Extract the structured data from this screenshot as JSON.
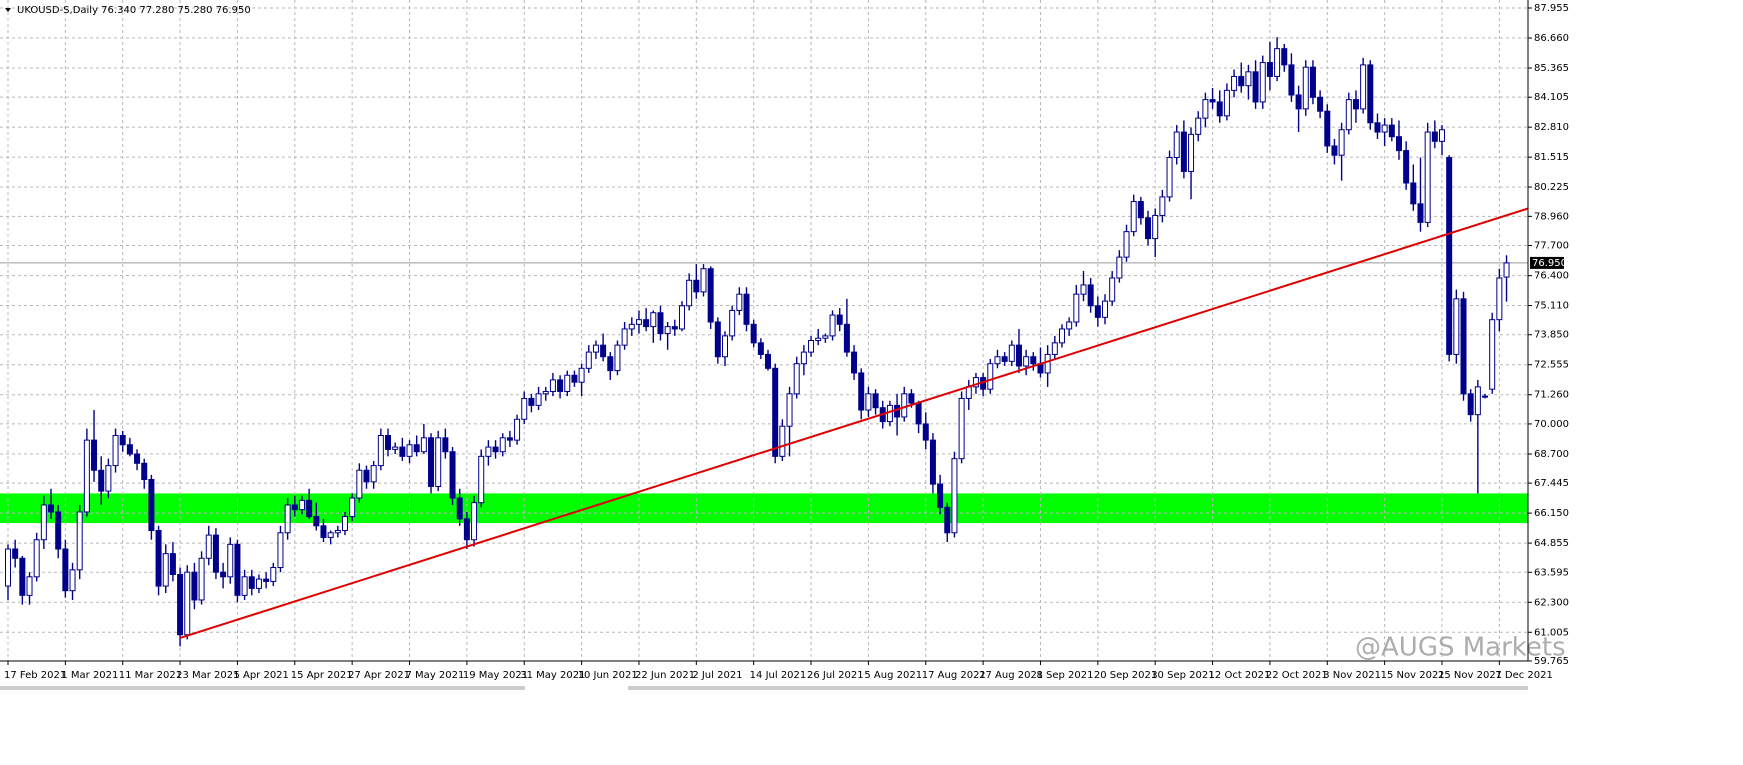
{
  "chart_data": {
    "type": "candlestick",
    "header": "UKOUSD-S,Daily  76.340 77.280 75.280 76.950",
    "watermark": "@AUGS Markets",
    "color": "#00008b",
    "grid": true,
    "ylim": [
      59.765,
      87.955
    ],
    "yticks": [
      87.955,
      {
        "value": 86.66,
        "label": "86.660"
      },
      85.365,
      84.105,
      {
        "value": 82.81,
        "label": "82.810"
      },
      81.515,
      80.225,
      {
        "value": 78.96,
        "label": "78.960"
      },
      {
        "value": 77.7,
        "label": "77.700"
      },
      {
        "value": 76.4,
        "label": "76.400"
      },
      {
        "value": 75.11,
        "label": "75.110"
      },
      {
        "value": 73.85,
        "label": "73.850"
      },
      72.555,
      {
        "value": 71.26,
        "label": "71.260"
      },
      {
        "value": 70,
        "label": "70.000"
      },
      {
        "value": 68.7,
        "label": "68.700"
      },
      67.445,
      {
        "value": 66.15,
        "label": "66.150"
      },
      64.855,
      63.595,
      {
        "value": 62.3,
        "label": "62.300"
      },
      61.005,
      59.765
    ],
    "last_price": {
      "value": 76.95,
      "label": "76.950"
    },
    "zone": [
      65.72,
      67.0
    ],
    "zone_color": "#00ff00",
    "trendline": {
      "x": [
        24,
        212
      ],
      "y": [
        60.76,
        79.3
      ],
      "color": "#e00000"
    },
    "categories": [
      "17 Feb 2021",
      null,
      null,
      null,
      null,
      null,
      null,
      null,
      "1 Mar 2021",
      null,
      null,
      null,
      null,
      null,
      null,
      null,
      "11 Mar 2021",
      null,
      null,
      null,
      null,
      null,
      null,
      null,
      "23 Mar 2021",
      null,
      null,
      null,
      null,
      null,
      null,
      null,
      "5 Apr 2021",
      null,
      null,
      null,
      null,
      null,
      null,
      null,
      "15 Apr 2021",
      null,
      null,
      null,
      null,
      null,
      null,
      null,
      "27 Apr 2021",
      null,
      null,
      null,
      null,
      null,
      null,
      null,
      "7 May 2021",
      null,
      null,
      null,
      null,
      null,
      null,
      null,
      "19 May 2021",
      null,
      null,
      null,
      null,
      null,
      null,
      null,
      "31 May 2021",
      null,
      null,
      null,
      null,
      null,
      null,
      null,
      "10 Jun 2021",
      null,
      null,
      null,
      null,
      null,
      null,
      null,
      "22 Jun 2021",
      null,
      null,
      null,
      null,
      null,
      null,
      null,
      "2 Jul 2021",
      null,
      null,
      null,
      null,
      null,
      null,
      null,
      "14 Jul 2021",
      null,
      null,
      null,
      null,
      null,
      null,
      null,
      "26 Jul 2021",
      null,
      null,
      null,
      null,
      null,
      null,
      null,
      "5 Aug 2021",
      null,
      null,
      null,
      null,
      null,
      null,
      null,
      "17 Aug 2021",
      null,
      null,
      null,
      null,
      null,
      null,
      null,
      "27 Aug 2021",
      null,
      null,
      null,
      null,
      null,
      null,
      null,
      "8 Sep 2021",
      null,
      null,
      null,
      null,
      null,
      null,
      null,
      "20 Sep 2021",
      null,
      null,
      null,
      null,
      null,
      null,
      null,
      "30 Sep 2021",
      null,
      null,
      null,
      null,
      null,
      null,
      null,
      "12 Oct 2021",
      null,
      null,
      null,
      null,
      null,
      null,
      null,
      "22 Oct 2021",
      null,
      null,
      null,
      null,
      null,
      null,
      null,
      "3 Nov 2021",
      null,
      null,
      null,
      null,
      null,
      null,
      null,
      "15 Nov 2021",
      null,
      null,
      null,
      null,
      null,
      null,
      null,
      "25 Nov 2021",
      null,
      null,
      null,
      null,
      null,
      null,
      null,
      "7 Dec 2021",
      null
    ],
    "ohlc": [
      [
        63.0,
        64.8,
        62.4,
        64.6
      ],
      [
        64.6,
        65.0,
        63.8,
        64.2
      ],
      [
        64.2,
        64.3,
        62.2,
        62.6
      ],
      [
        62.6,
        63.6,
        62.2,
        63.4
      ],
      [
        63.4,
        65.3,
        63.2,
        65.0
      ],
      [
        65.0,
        66.9,
        64.6,
        66.5
      ],
      [
        66.5,
        67.2,
        65.9,
        66.2
      ],
      [
        66.2,
        66.5,
        64.2,
        64.6
      ],
      [
        64.6,
        65.0,
        62.5,
        62.8
      ],
      [
        62.8,
        64.0,
        62.4,
        63.7
      ],
      [
        63.7,
        66.5,
        63.3,
        66.2
      ],
      [
        66.2,
        69.8,
        66.0,
        69.3
      ],
      [
        69.3,
        70.6,
        67.5,
        68.0
      ],
      [
        68.0,
        68.6,
        66.5,
        67.1
      ],
      [
        67.1,
        68.5,
        66.8,
        68.2
      ],
      [
        68.2,
        69.8,
        67.9,
        69.5
      ],
      [
        69.5,
        69.7,
        68.8,
        69.1
      ],
      [
        69.1,
        69.4,
        68.6,
        68.7
      ],
      [
        68.7,
        68.9,
        68.0,
        68.3
      ],
      [
        68.3,
        68.5,
        67.2,
        67.6
      ],
      [
        67.6,
        67.8,
        65.0,
        65.4
      ],
      [
        65.4,
        65.6,
        62.6,
        63.0
      ],
      [
        63.0,
        64.8,
        62.7,
        64.4
      ],
      [
        64.4,
        64.9,
        63.2,
        63.5
      ],
      [
        63.5,
        63.8,
        60.4,
        60.9
      ],
      [
        60.9,
        63.9,
        60.7,
        63.6
      ],
      [
        63.6,
        64.0,
        62.0,
        62.4
      ],
      [
        62.4,
        64.5,
        62.2,
        64.2
      ],
      [
        64.2,
        65.6,
        63.9,
        65.2
      ],
      [
        65.2,
        65.5,
        63.3,
        63.6
      ],
      [
        63.6,
        64.0,
        62.9,
        63.4
      ],
      [
        63.4,
        65.1,
        63.1,
        64.8
      ],
      [
        64.8,
        65.0,
        62.3,
        62.6
      ],
      [
        62.6,
        63.7,
        62.4,
        63.4
      ],
      [
        63.4,
        63.7,
        62.6,
        62.9
      ],
      [
        62.9,
        63.5,
        62.7,
        63.3
      ],
      [
        63.3,
        63.6,
        62.9,
        63.2
      ],
      [
        63.2,
        64.0,
        63.0,
        63.8
      ],
      [
        63.8,
        65.6,
        63.6,
        65.3
      ],
      [
        65.3,
        66.8,
        65.0,
        66.5
      ],
      [
        66.5,
        66.9,
        66.0,
        66.3
      ],
      [
        66.3,
        66.9,
        66.1,
        66.7
      ],
      [
        66.7,
        67.2,
        65.9,
        66.0
      ],
      [
        66.0,
        66.6,
        65.4,
        65.6
      ],
      [
        65.6,
        65.9,
        64.9,
        65.1
      ],
      [
        65.1,
        65.4,
        64.8,
        65.3
      ],
      [
        65.3,
        65.6,
        65.1,
        65.4
      ],
      [
        65.4,
        66.2,
        65.2,
        66.0
      ],
      [
        66.0,
        67.0,
        65.8,
        66.8
      ],
      [
        66.8,
        68.3,
        66.6,
        68.0
      ],
      [
        68.0,
        68.2,
        67.2,
        67.5
      ],
      [
        67.5,
        68.4,
        67.2,
        68.2
      ],
      [
        68.2,
        69.8,
        68.0,
        69.5
      ],
      [
        69.5,
        69.8,
        68.6,
        68.9
      ],
      [
        68.9,
        69.2,
        68.7,
        69.0
      ],
      [
        69.0,
        69.4,
        68.4,
        68.6
      ],
      [
        68.6,
        69.3,
        68.3,
        69.1
      ],
      [
        69.1,
        69.5,
        68.6,
        68.8
      ],
      [
        68.8,
        70.0,
        68.7,
        69.4
      ],
      [
        69.4,
        69.6,
        67.0,
        67.3
      ],
      [
        67.3,
        69.7,
        67.1,
        69.4
      ],
      [
        69.4,
        69.8,
        68.5,
        68.8
      ],
      [
        68.8,
        69.0,
        66.5,
        66.8
      ],
      [
        66.8,
        67.2,
        65.6,
        65.9
      ],
      [
        65.9,
        66.2,
        64.6,
        65.0
      ],
      [
        65.0,
        66.9,
        64.7,
        66.6
      ],
      [
        66.6,
        68.9,
        66.4,
        68.6
      ],
      [
        68.6,
        69.3,
        68.2,
        69.0
      ],
      [
        69.0,
        69.3,
        68.5,
        68.8
      ],
      [
        68.8,
        69.6,
        68.6,
        69.4
      ],
      [
        69.4,
        69.7,
        69.0,
        69.3
      ],
      [
        69.3,
        70.4,
        69.1,
        70.2
      ],
      [
        70.2,
        71.4,
        70.0,
        71.1
      ],
      [
        71.1,
        71.3,
        70.5,
        70.8
      ],
      [
        70.8,
        71.6,
        70.6,
        71.3
      ],
      [
        71.3,
        71.6,
        71.0,
        71.4
      ],
      [
        71.4,
        72.2,
        71.2,
        71.9
      ],
      [
        71.9,
        72.1,
        71.1,
        71.4
      ],
      [
        71.4,
        72.3,
        71.2,
        72.1
      ],
      [
        72.1,
        72.3,
        71.6,
        71.8
      ],
      [
        71.8,
        72.6,
        71.2,
        72.4
      ],
      [
        72.4,
        73.4,
        72.2,
        73.1
      ],
      [
        73.1,
        73.6,
        72.8,
        73.4
      ],
      [
        73.4,
        73.9,
        72.7,
        72.9
      ],
      [
        72.9,
        73.1,
        71.9,
        72.3
      ],
      [
        72.3,
        73.6,
        72.1,
        73.4
      ],
      [
        73.4,
        74.4,
        73.2,
        74.1
      ],
      [
        74.1,
        74.6,
        73.8,
        74.3
      ],
      [
        74.3,
        74.9,
        73.9,
        74.5
      ],
      [
        74.5,
        75.0,
        74.0,
        74.2
      ],
      [
        74.2,
        74.9,
        73.5,
        74.8
      ],
      [
        74.8,
        75.1,
        73.6,
        73.9
      ],
      [
        73.9,
        74.4,
        73.2,
        74.2
      ],
      [
        74.2,
        74.5,
        73.8,
        74.1
      ],
      [
        74.1,
        75.3,
        74.0,
        75.1
      ],
      [
        75.1,
        76.5,
        74.9,
        76.2
      ],
      [
        76.2,
        76.9,
        75.4,
        75.7
      ],
      [
        75.7,
        76.9,
        75.5,
        76.7
      ],
      [
        76.7,
        76.8,
        74.1,
        74.4
      ],
      [
        74.4,
        74.6,
        72.6,
        72.9
      ],
      [
        72.9,
        74.0,
        72.5,
        73.8
      ],
      [
        73.8,
        75.1,
        73.6,
        74.9
      ],
      [
        74.9,
        75.9,
        74.7,
        75.6
      ],
      [
        75.6,
        75.9,
        74.0,
        74.3
      ],
      [
        74.3,
        74.5,
        73.3,
        73.5
      ],
      [
        73.5,
        73.7,
        72.8,
        73.0
      ],
      [
        73.0,
        73.2,
        72.3,
        72.4
      ],
      [
        72.4,
        72.6,
        68.3,
        68.6
      ],
      [
        68.6,
        70.2,
        68.4,
        69.9
      ],
      [
        69.9,
        71.6,
        68.6,
        71.3
      ],
      [
        71.3,
        72.9,
        71.1,
        72.6
      ],
      [
        72.6,
        73.4,
        72.1,
        73.1
      ],
      [
        73.1,
        73.8,
        72.9,
        73.6
      ],
      [
        73.6,
        74.1,
        73.4,
        73.7
      ],
      [
        73.7,
        73.9,
        73.5,
        73.8
      ],
      [
        73.8,
        74.9,
        73.6,
        74.7
      ],
      [
        74.7,
        75.0,
        74.0,
        74.3
      ],
      [
        74.3,
        75.4,
        72.9,
        73.1
      ],
      [
        73.1,
        73.4,
        71.9,
        72.2
      ],
      [
        72.2,
        72.4,
        70.2,
        70.6
      ],
      [
        70.6,
        71.6,
        70.3,
        71.3
      ],
      [
        71.3,
        71.5,
        70.4,
        70.7
      ],
      [
        70.7,
        71.0,
        69.8,
        70.1
      ],
      [
        70.1,
        71.0,
        69.9,
        70.8
      ],
      [
        70.8,
        71.3,
        69.5,
        70.3
      ],
      [
        70.3,
        71.6,
        70.1,
        71.3
      ],
      [
        71.3,
        71.5,
        70.7,
        70.9
      ],
      [
        70.9,
        71.0,
        69.6,
        70.0
      ],
      [
        70.0,
        70.5,
        68.9,
        69.3
      ],
      [
        69.3,
        69.6,
        67.0,
        67.4
      ],
      [
        67.4,
        67.8,
        66.1,
        66.4
      ],
      [
        66.4,
        66.6,
        64.9,
        65.3
      ],
      [
        65.3,
        68.8,
        65.1,
        68.5
      ],
      [
        68.5,
        71.4,
        68.3,
        71.1
      ],
      [
        71.1,
        71.9,
        70.6,
        71.6
      ],
      [
        71.6,
        72.2,
        71.3,
        72.0
      ],
      [
        72.0,
        72.2,
        71.2,
        71.5
      ],
      [
        71.5,
        72.8,
        71.3,
        72.6
      ],
      [
        72.6,
        73.2,
        72.4,
        72.9
      ],
      [
        72.9,
        73.1,
        72.5,
        72.7
      ],
      [
        72.7,
        73.6,
        72.5,
        73.4
      ],
      [
        73.4,
        74.1,
        72.2,
        72.5
      ],
      [
        72.5,
        73.2,
        72.1,
        72.9
      ],
      [
        72.9,
        73.1,
        72.3,
        72.6
      ],
      [
        72.6,
        73.3,
        72.0,
        72.2
      ],
      [
        72.2,
        73.4,
        71.6,
        73.0
      ],
      [
        73.0,
        73.8,
        72.8,
        73.5
      ],
      [
        73.5,
        74.3,
        73.3,
        74.1
      ],
      [
        74.1,
        74.6,
        73.8,
        74.4
      ],
      [
        74.4,
        76.0,
        74.2,
        75.6
      ],
      [
        75.6,
        76.6,
        75.3,
        76.0
      ],
      [
        76.0,
        76.3,
        74.8,
        75.1
      ],
      [
        75.1,
        75.5,
        74.2,
        74.6
      ],
      [
        74.6,
        75.6,
        74.3,
        75.3
      ],
      [
        75.3,
        76.6,
        75.1,
        76.3
      ],
      [
        76.3,
        77.5,
        76.1,
        77.2
      ],
      [
        77.2,
        78.6,
        77.0,
        78.3
      ],
      [
        78.3,
        79.9,
        78.1,
        79.6
      ],
      [
        79.6,
        79.8,
        78.6,
        78.9
      ],
      [
        78.9,
        79.2,
        77.7,
        78.0
      ],
      [
        78.0,
        79.3,
        77.2,
        79.0
      ],
      [
        79.0,
        80.1,
        78.7,
        79.8
      ],
      [
        79.8,
        81.8,
        79.6,
        81.5
      ],
      [
        81.5,
        82.9,
        81.2,
        82.6
      ],
      [
        82.6,
        83.1,
        80.6,
        80.9
      ],
      [
        80.9,
        82.8,
        79.7,
        82.5
      ],
      [
        82.5,
        83.5,
        82.2,
        83.2
      ],
      [
        83.2,
        84.3,
        82.8,
        84.0
      ],
      [
        84.0,
        84.5,
        83.6,
        83.9
      ],
      [
        83.9,
        84.4,
        83.0,
        83.3
      ],
      [
        83.3,
        84.7,
        83.1,
        84.4
      ],
      [
        84.4,
        85.3,
        84.1,
        85.0
      ],
      [
        85.0,
        85.6,
        84.3,
        84.6
      ],
      [
        84.6,
        85.5,
        84.0,
        85.2
      ],
      [
        85.2,
        85.7,
        83.6,
        83.9
      ],
      [
        83.9,
        85.9,
        83.6,
        85.6
      ],
      [
        85.6,
        86.5,
        84.4,
        85.0
      ],
      [
        85.0,
        86.7,
        84.8,
        86.2
      ],
      [
        86.2,
        86.4,
        85.2,
        85.5
      ],
      [
        85.5,
        86.0,
        83.9,
        84.2
      ],
      [
        84.2,
        84.6,
        82.6,
        83.6
      ],
      [
        83.6,
        85.7,
        83.3,
        85.4
      ],
      [
        85.4,
        85.7,
        83.8,
        84.1
      ],
      [
        84.1,
        84.4,
        83.2,
        83.5
      ],
      [
        83.5,
        83.8,
        81.7,
        82.0
      ],
      [
        82.0,
        82.3,
        81.2,
        81.6
      ],
      [
        81.6,
        83.0,
        80.5,
        82.7
      ],
      [
        82.7,
        84.3,
        82.5,
        84.0
      ],
      [
        84.0,
        84.4,
        83.0,
        83.6
      ],
      [
        83.6,
        85.8,
        83.4,
        85.5
      ],
      [
        85.5,
        85.7,
        82.7,
        83.0
      ],
      [
        83.0,
        83.4,
        82.3,
        82.6
      ],
      [
        82.6,
        83.2,
        82.0,
        82.9
      ],
      [
        82.9,
        83.2,
        82.2,
        82.4
      ],
      [
        82.4,
        83.1,
        81.4,
        81.8
      ],
      [
        81.8,
        82.2,
        80.1,
        80.4
      ],
      [
        80.4,
        81.2,
        79.2,
        79.5
      ],
      [
        79.5,
        81.5,
        78.3,
        78.7
      ],
      [
        78.7,
        83.0,
        78.5,
        82.6
      ],
      [
        82.6,
        83.1,
        81.9,
        82.2
      ],
      [
        82.2,
        82.9,
        81.6,
        82.7
      ],
      [
        81.5,
        81.6,
        72.7,
        73.0
      ],
      [
        73.0,
        75.8,
        72.6,
        75.4
      ],
      [
        75.4,
        75.7,
        71.0,
        71.3
      ],
      [
        71.3,
        71.5,
        70.1,
        70.4
      ],
      [
        70.4,
        71.9,
        67.0,
        71.6
      ],
      [
        71.2,
        71.3,
        71.1,
        71.2
      ],
      [
        71.5,
        74.8,
        71.3,
        74.5
      ],
      [
        74.5,
        76.7,
        74.0,
        76.3
      ],
      [
        76.34,
        77.28,
        75.28,
        76.95
      ]
    ]
  }
}
